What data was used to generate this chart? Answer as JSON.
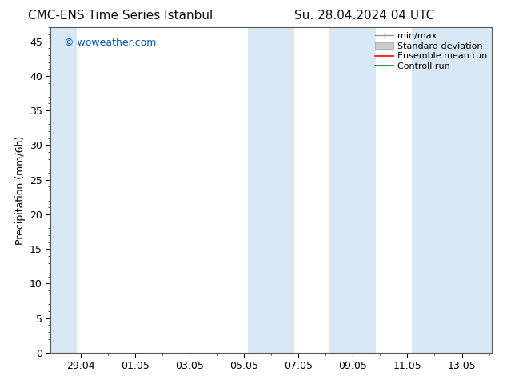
{
  "title": "CMC-ENS Time Series Istanbul",
  "title2": "Su. 28.04.2024 04 UTC",
  "ylabel": "Precipitation (mm/6h)",
  "watermark": "© woweather.com",
  "watermark_color": "#0055cc",
  "ylim": [
    0,
    47
  ],
  "yticks": [
    0,
    5,
    10,
    15,
    20,
    25,
    30,
    35,
    40,
    45
  ],
  "background_color": "#ffffff",
  "plot_bg_color": "#ffffff",
  "shaded_band_color": "#d8e8f5",
  "x_tick_labels": [
    "29.04",
    "01.05",
    "03.05",
    "05.05",
    "07.05",
    "09.05",
    "11.05",
    "13.05"
  ],
  "x_tick_positions": [
    1,
    3,
    5,
    7,
    9,
    11,
    13,
    15
  ],
  "xlim": [
    -0.1,
    16.1
  ],
  "shaded_regions": [
    {
      "start": -0.1,
      "end": 0.85
    },
    {
      "start": 7.15,
      "end": 8.85
    },
    {
      "start": 10.15,
      "end": 11.85
    },
    {
      "start": 13.15,
      "end": 16.1
    }
  ],
  "legend_labels": [
    "min/max",
    "Standard deviation",
    "Ensemble mean run",
    "Controll run"
  ],
  "legend_handle_colors": [
    "#aaaaaa",
    "#c8c8c8",
    "#ff0000",
    "#008800"
  ],
  "title_fontsize": 11,
  "ylabel_fontsize": 9,
  "tick_fontsize": 9,
  "watermark_fontsize": 9,
  "legend_fontsize": 8
}
